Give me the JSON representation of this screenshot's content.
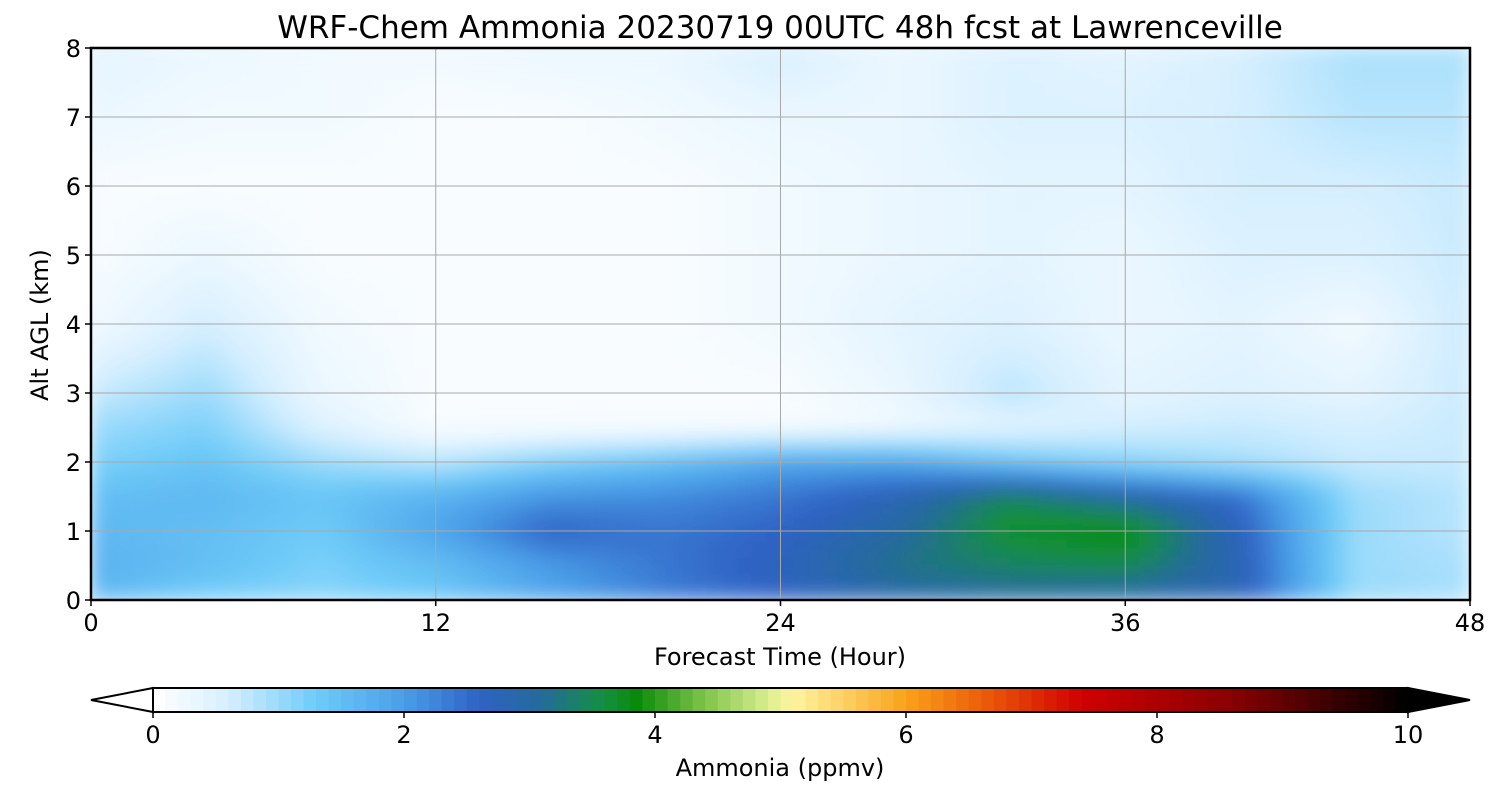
{
  "chart_data": {
    "type": "heatmap",
    "title": "WRF-Chem Ammonia  20230719 00UTC 48h fcst at Lawrenceville",
    "xlabel": "Forecast Time (Hour)",
    "ylabel": "Alt AGL (km)",
    "xlim": [
      0,
      48
    ],
    "ylim": [
      0,
      8
    ],
    "xticks": [
      "0",
      "12",
      "24",
      "36",
      "48"
    ],
    "yticks": [
      "0",
      "1",
      "2",
      "3",
      "4",
      "5",
      "6",
      "7",
      "8"
    ],
    "grid": true,
    "x": [
      0,
      4,
      8,
      12,
      16,
      20,
      24,
      28,
      32,
      36,
      40,
      44,
      48
    ],
    "y": [
      0,
      0.5,
      1,
      1.5,
      2,
      2.5,
      3,
      4,
      5,
      6,
      7,
      8
    ],
    "z": [
      [
        1.6,
        1.2,
        1.1,
        1.3,
        1.9,
        2.3,
        2.6,
        2.9,
        3.0,
        2.9,
        2.8,
        1.0,
        0.9
      ],
      [
        1.7,
        1.5,
        1.2,
        1.5,
        2.0,
        2.4,
        2.7,
        3.2,
        3.4,
        3.5,
        2.8,
        1.0,
        0.9
      ],
      [
        1.6,
        1.5,
        1.3,
        1.9,
        2.6,
        2.4,
        2.6,
        3.0,
        3.7,
        3.9,
        2.7,
        1.0,
        0.8
      ],
      [
        1.5,
        1.6,
        1.4,
        1.7,
        2.1,
        2.2,
        2.4,
        2.8,
        3.5,
        3.0,
        2.5,
        1.0,
        0.8
      ],
      [
        1.2,
        1.4,
        1.0,
        0.8,
        1.2,
        1.5,
        1.9,
        1.9,
        1.4,
        1.1,
        0.9,
        0.7,
        0.7
      ],
      [
        1.0,
        1.2,
        0.5,
        0.1,
        0.1,
        0.1,
        0.1,
        0.2,
        0.4,
        0.6,
        0.7,
        0.6,
        0.7
      ],
      [
        0.7,
        1.0,
        0.3,
        0.1,
        0.1,
        0.1,
        0.1,
        0.3,
        0.8,
        0.4,
        0.5,
        0.4,
        0.7
      ],
      [
        0.2,
        0.6,
        0.2,
        0.1,
        0.1,
        0.1,
        0.2,
        0.4,
        0.5,
        0.3,
        0.4,
        0.2,
        0.7
      ],
      [
        0.1,
        0.3,
        0.1,
        0.1,
        0.1,
        0.1,
        0.2,
        0.3,
        0.4,
        0.3,
        0.5,
        0.5,
        0.7
      ],
      [
        0.1,
        0.1,
        0.1,
        0.1,
        0.1,
        0.1,
        0.2,
        0.3,
        0.4,
        0.4,
        0.6,
        0.6,
        0.7
      ],
      [
        0.3,
        0.2,
        0.2,
        0.1,
        0.1,
        0.2,
        0.3,
        0.3,
        0.5,
        0.5,
        0.6,
        0.8,
        0.8
      ],
      [
        0.4,
        0.3,
        0.2,
        0.2,
        0.3,
        0.3,
        0.6,
        0.3,
        0.5,
        0.4,
        0.6,
        0.9,
        0.9
      ]
    ],
    "colorbar": {
      "label": "Ammonia  (ppmv)",
      "ticks": [
        "0",
        "2",
        "4",
        "6",
        "8",
        "10"
      ],
      "vmin": 0,
      "vmax": 10,
      "extend": "both",
      "stops": [
        [
          0.0,
          "#ffffff"
        ],
        [
          0.6,
          "#d6efff"
        ],
        [
          1.3,
          "#6ecbf8"
        ],
        [
          2.0,
          "#4a9ee8"
        ],
        [
          2.6,
          "#2f62c4"
        ],
        [
          3.1,
          "#246b9a"
        ],
        [
          3.6,
          "#149040"
        ],
        [
          3.85,
          "#0a8a0a"
        ],
        [
          4.4,
          "#7fc44a"
        ],
        [
          4.9,
          "#d9ee90"
        ],
        [
          5.1,
          "#fff5a0"
        ],
        [
          6.0,
          "#f9a21a"
        ],
        [
          6.6,
          "#ec5e0a"
        ],
        [
          7.4,
          "#d00000"
        ],
        [
          8.6,
          "#880000"
        ],
        [
          10.0,
          "#000000"
        ]
      ]
    }
  }
}
